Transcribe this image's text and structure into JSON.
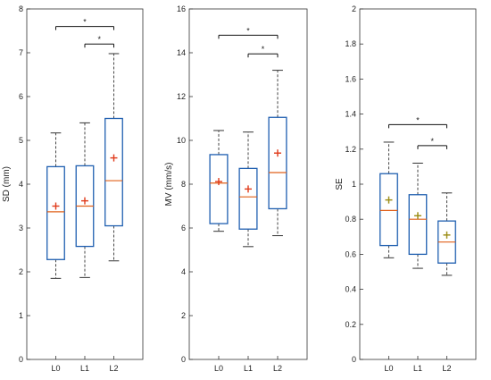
{
  "chart_data": [
    {
      "type": "box",
      "ylabel": "SD (mm)",
      "ylim": [
        0,
        8
      ],
      "yticks": [
        0,
        1,
        2,
        3,
        4,
        5,
        6,
        7,
        8
      ],
      "categories": [
        "L0",
        "L1",
        "L2"
      ],
      "boxes": [
        {
          "category": "L0",
          "whisker_low": 1.85,
          "q1": 2.28,
          "median": 3.37,
          "q3": 4.4,
          "whisker_high": 5.17,
          "mean": 3.5
        },
        {
          "category": "L1",
          "whisker_low": 1.87,
          "q1": 2.58,
          "median": 3.5,
          "q3": 4.42,
          "whisker_high": 5.4,
          "mean": 3.62
        },
        {
          "category": "L2",
          "whisker_low": 2.25,
          "q1": 3.05,
          "median": 4.08,
          "q3": 5.5,
          "whisker_high": 6.98,
          "mean": 4.6
        }
      ],
      "significance": [
        {
          "from": "L0",
          "to": "L2",
          "y": 7.6,
          "label": "*"
        },
        {
          "from": "L1",
          "to": "L2",
          "y": 7.2,
          "label": "*"
        }
      ],
      "colors": {
        "box": "#1f5fb0",
        "median": "#e0601a",
        "mean_marker": "#e03a1a",
        "whisker": "#333333"
      }
    },
    {
      "type": "box",
      "ylabel": "MV (mm/s)",
      "ylim": [
        0,
        16
      ],
      "yticks": [
        0,
        2,
        4,
        6,
        8,
        10,
        12,
        14,
        16
      ],
      "categories": [
        "L0",
        "L1",
        "L2"
      ],
      "boxes": [
        {
          "category": "L0",
          "whisker_low": 5.85,
          "q1": 6.2,
          "median": 8.05,
          "q3": 9.35,
          "whisker_high": 10.45,
          "mean": 8.12
        },
        {
          "category": "L1",
          "whisker_low": 5.15,
          "q1": 5.95,
          "median": 7.42,
          "q3": 8.72,
          "whisker_high": 10.38,
          "mean": 7.78
        },
        {
          "category": "L2",
          "whisker_low": 5.65,
          "q1": 6.88,
          "median": 8.53,
          "q3": 11.05,
          "whisker_high": 13.2,
          "mean": 9.42
        }
      ],
      "significance": [
        {
          "from": "L0",
          "to": "L2",
          "y": 14.8,
          "label": "*"
        },
        {
          "from": "L1",
          "to": "L2",
          "y": 13.95,
          "label": "*"
        }
      ],
      "colors": {
        "box": "#1f5fb0",
        "median": "#e0601a",
        "mean_marker": "#e03a1a",
        "whisker": "#333333"
      }
    },
    {
      "type": "box",
      "ylabel": "SE",
      "ylim": [
        0,
        2
      ],
      "yticks": [
        0,
        0.2,
        0.4,
        0.6,
        0.8,
        1,
        1.2,
        1.4,
        1.6,
        1.8,
        2
      ],
      "categories": [
        "L0",
        "L1",
        "L2"
      ],
      "boxes": [
        {
          "category": "L0",
          "whisker_low": 0.58,
          "q1": 0.65,
          "median": 0.85,
          "q3": 1.06,
          "whisker_high": 1.24,
          "mean": 0.91
        },
        {
          "category": "L1",
          "whisker_low": 0.52,
          "q1": 0.6,
          "median": 0.8,
          "q3": 0.94,
          "whisker_high": 1.12,
          "mean": 0.82
        },
        {
          "category": "L2",
          "whisker_low": 0.48,
          "q1": 0.55,
          "median": 0.67,
          "q3": 0.79,
          "whisker_high": 0.95,
          "mean": 0.71
        }
      ],
      "significance": [
        {
          "from": "L0",
          "to": "L2",
          "y": 1.34,
          "label": "*"
        },
        {
          "from": "L1",
          "to": "L2",
          "y": 1.22,
          "label": "*"
        }
      ],
      "colors": {
        "box": "#1f5fb0",
        "median": "#e0601a",
        "mean_marker": "#9a8a10",
        "whisker": "#333333"
      }
    }
  ]
}
